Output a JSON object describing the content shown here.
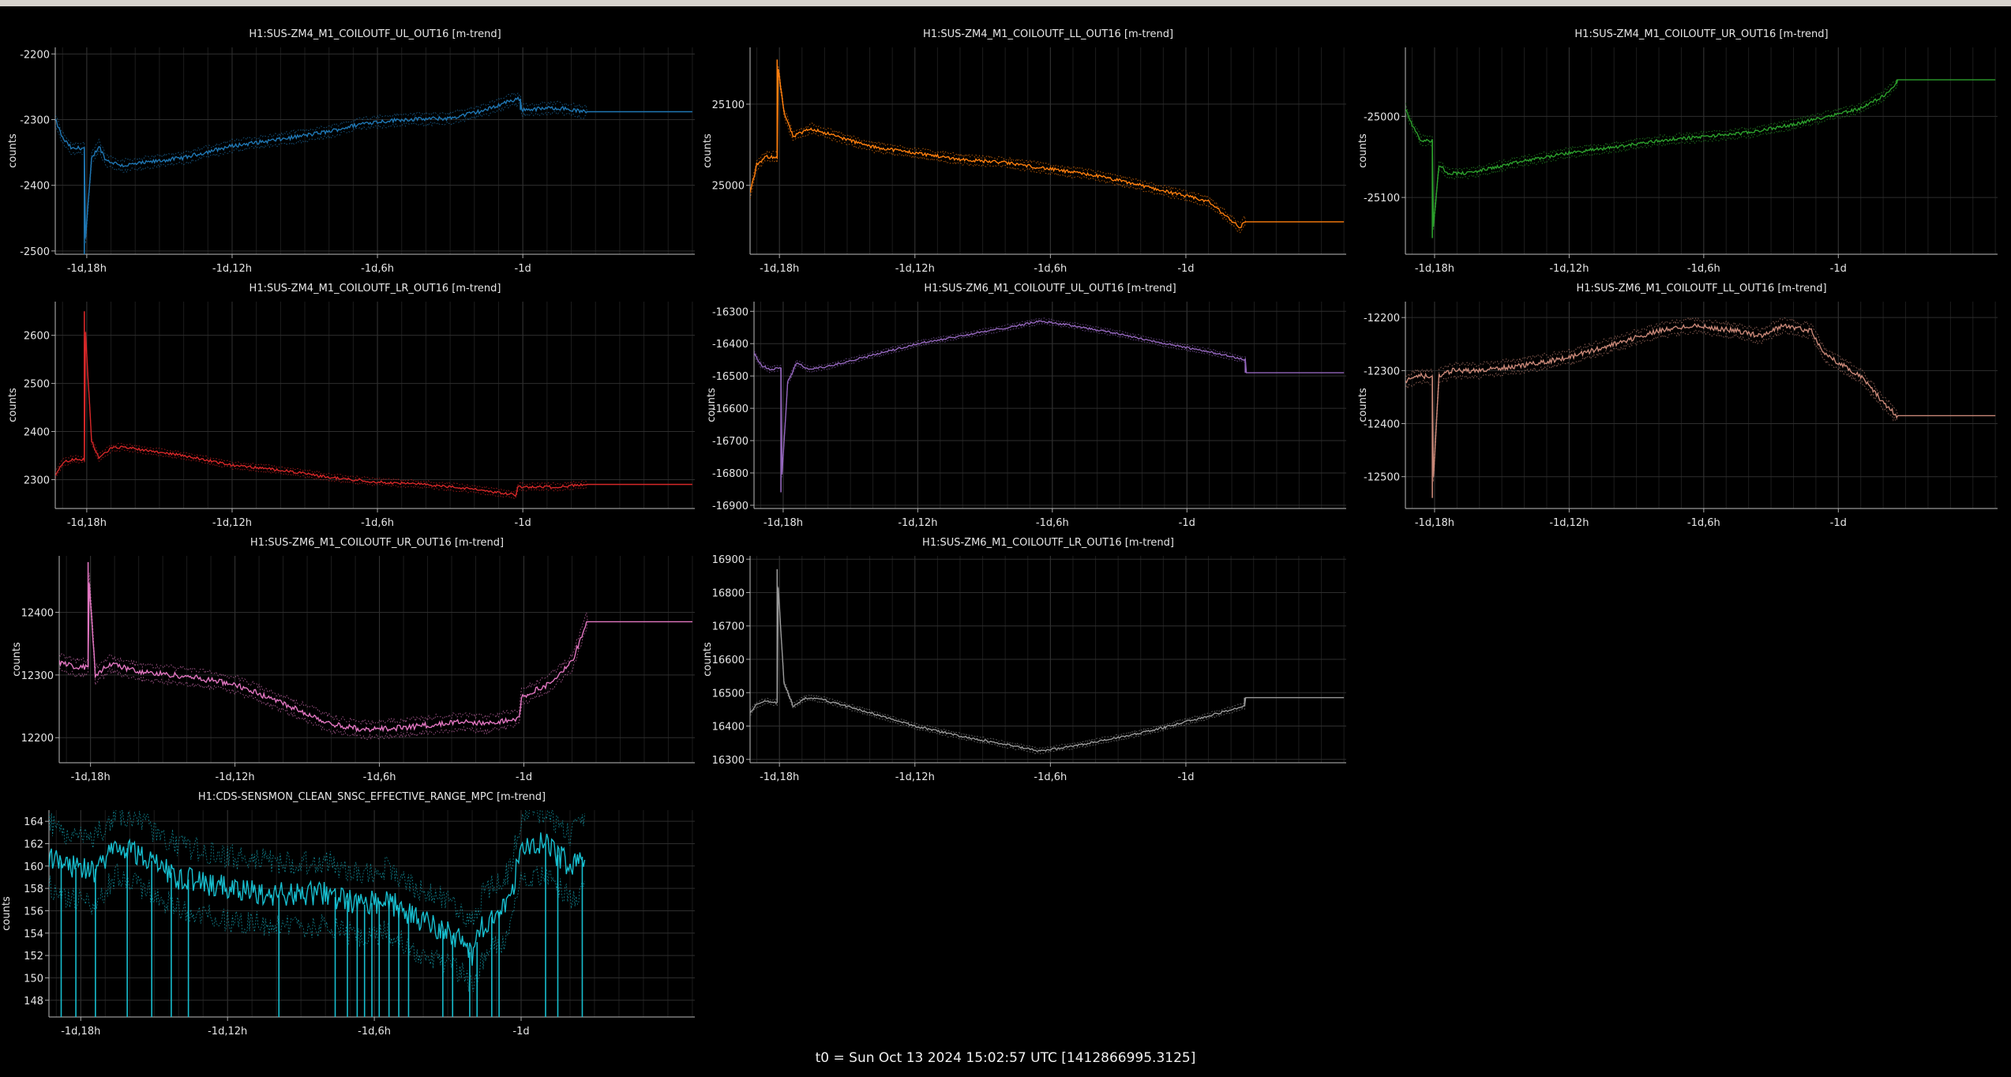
{
  "footer": "t0 = Sun Oct 13 2024 15:02:57 UTC [1412866995.3125]",
  "x_ticks": [
    "-1d,18h",
    "-1d,12h",
    "-1d,6h",
    "-1d"
  ],
  "x_tick_hours": [
    -42,
    -36,
    -30,
    -24
  ],
  "x_range_hours": [
    -43.3,
    -16.9
  ],
  "chart_data": [
    {
      "type": "line",
      "title": "H1:SUS-ZM4_M1_COILOUTF_UL_OUT16 [m-trend]",
      "ylabel": "counts",
      "color": "#1f77b4",
      "ylim": [
        -2505,
        -2190
      ],
      "yticks": [
        -2200,
        -2300,
        -2400,
        -2500
      ],
      "points": [
        [
          -43.3,
          -2300
        ],
        [
          -43.0,
          -2328
        ],
        [
          -42.6,
          -2345
        ],
        [
          -42.3,
          -2343
        ],
        [
          -42.1,
          -2343
        ],
        [
          -42.1,
          -2505
        ],
        [
          -41.8,
          -2360
        ],
        [
          -41.5,
          -2340
        ],
        [
          -41.2,
          -2362
        ],
        [
          -40.5,
          -2370
        ],
        [
          -38,
          -2358
        ],
        [
          -36,
          -2340
        ],
        [
          -34,
          -2330
        ],
        [
          -32,
          -2318
        ],
        [
          -30.5,
          -2305
        ],
        [
          -29,
          -2300
        ],
        [
          -27,
          -2298
        ],
        [
          -25.5,
          -2285
        ],
        [
          -24.6,
          -2272
        ],
        [
          -24.1,
          -2268
        ],
        [
          -24.1,
          -2285
        ],
        [
          -22.5,
          -2282
        ],
        [
          -21.5,
          -2288
        ],
        [
          -21.4,
          -2288
        ],
        [
          -17,
          -2288
        ]
      ],
      "noise": 6
    },
    {
      "type": "line",
      "title": "H1:SUS-ZM4_M1_COILOUTF_LL_OUT16 [m-trend]",
      "ylabel": "counts",
      "color": "#ff7f0e",
      "ylim": [
        24915,
        25170
      ],
      "yticks": [
        25100,
        25000
      ],
      "points": [
        [
          -43.3,
          24990
        ],
        [
          -43.0,
          25025
        ],
        [
          -42.6,
          25035
        ],
        [
          -42.1,
          25035
        ],
        [
          -42.1,
          25155
        ],
        [
          -41.8,
          25090
        ],
        [
          -41.4,
          25060
        ],
        [
          -40.6,
          25070
        ],
        [
          -38,
          25048
        ],
        [
          -36,
          25040
        ],
        [
          -34,
          25032
        ],
        [
          -32,
          25028
        ],
        [
          -30,
          25020
        ],
        [
          -28,
          25012
        ],
        [
          -26,
          25000
        ],
        [
          -24.5,
          24990
        ],
        [
          -23,
          24980
        ],
        [
          -21.6,
          24948
        ],
        [
          -21.4,
          24955
        ],
        [
          -17,
          24955
        ]
      ],
      "noise": 4
    },
    {
      "type": "line",
      "title": "H1:SUS-ZM4_M1_COILOUTF_UR_OUT16 [m-trend]",
      "ylabel": "counts",
      "color": "#2ca02c",
      "ylim": [
        -25170,
        -24915
      ],
      "yticks": [
        -25000,
        -25100
      ],
      "points": [
        [
          -43.3,
          -24990
        ],
        [
          -43.0,
          -25010
        ],
        [
          -42.6,
          -25030
        ],
        [
          -42.1,
          -25030
        ],
        [
          -42.1,
          -25150
        ],
        [
          -41.8,
          -25060
        ],
        [
          -41.4,
          -25070
        ],
        [
          -40.5,
          -25070
        ],
        [
          -38,
          -25055
        ],
        [
          -36,
          -25045
        ],
        [
          -34,
          -25038
        ],
        [
          -32,
          -25030
        ],
        [
          -30,
          -25025
        ],
        [
          -28,
          -25020
        ],
        [
          -26,
          -25010
        ],
        [
          -24.5,
          -25000
        ],
        [
          -23,
          -24990
        ],
        [
          -22,
          -24975
        ],
        [
          -21.4,
          -24960
        ],
        [
          -21.4,
          -24955
        ],
        [
          -17,
          -24955
        ]
      ],
      "noise": 4
    },
    {
      "type": "line",
      "title": "H1:SUS-ZM4_M1_COILOUTF_LR_OUT16 [m-trend]",
      "ylabel": "counts",
      "color": "#d62728",
      "ylim": [
        2240,
        2670
      ],
      "yticks": [
        2600,
        2500,
        2400,
        2300
      ],
      "points": [
        [
          -43.3,
          2310
        ],
        [
          -43.0,
          2335
        ],
        [
          -42.6,
          2342
        ],
        [
          -42.1,
          2342
        ],
        [
          -42.1,
          2650
        ],
        [
          -41.8,
          2380
        ],
        [
          -41.5,
          2345
        ],
        [
          -41.0,
          2365
        ],
        [
          -40.5,
          2368
        ],
        [
          -38,
          2350
        ],
        [
          -36,
          2330
        ],
        [
          -34,
          2320
        ],
        [
          -32,
          2305
        ],
        [
          -30,
          2295
        ],
        [
          -28,
          2290
        ],
        [
          -26,
          2280
        ],
        [
          -24.3,
          2268
        ],
        [
          -24.2,
          2285
        ],
        [
          -22.5,
          2285
        ],
        [
          -21.4,
          2290
        ],
        [
          -17,
          2290
        ]
      ],
      "noise": 5
    },
    {
      "type": "line",
      "title": "H1:SUS-ZM6_M1_COILOUTF_UL_OUT16 [m-trend]",
      "ylabel": "counts",
      "color": "#9467bd",
      "ylim": [
        -16910,
        -16270
      ],
      "yticks": [
        -16300,
        -16400,
        -16500,
        -16600,
        -16700,
        -16800,
        -16900
      ],
      "points": [
        [
          -43.3,
          -16430
        ],
        [
          -43.0,
          -16465
        ],
        [
          -42.6,
          -16480
        ],
        [
          -42.1,
          -16475
        ],
        [
          -42.1,
          -16860
        ],
        [
          -41.8,
          -16520
        ],
        [
          -41.4,
          -16460
        ],
        [
          -40.8,
          -16480
        ],
        [
          -40,
          -16470
        ],
        [
          -38,
          -16435
        ],
        [
          -36,
          -16400
        ],
        [
          -34,
          -16375
        ],
        [
          -32,
          -16350
        ],
        [
          -30.5,
          -16330
        ],
        [
          -29,
          -16345
        ],
        [
          -27,
          -16370
        ],
        [
          -25,
          -16400
        ],
        [
          -23,
          -16425
        ],
        [
          -21.4,
          -16450
        ],
        [
          -21.4,
          -16490
        ],
        [
          -17,
          -16490
        ]
      ],
      "noise": 6
    },
    {
      "type": "line",
      "title": "H1:SUS-ZM6_M1_COILOUTF_LL_OUT16 [m-trend]",
      "ylabel": "counts",
      "color": "#c98878",
      "ylim": [
        -12560,
        -12170
      ],
      "yticks": [
        -12200,
        -12300,
        -12400,
        -12500
      ],
      "points": [
        [
          -43.3,
          -12320
        ],
        [
          -42.6,
          -12310
        ],
        [
          -42.1,
          -12312
        ],
        [
          -42.1,
          -12540
        ],
        [
          -41.8,
          -12310
        ],
        [
          -41.2,
          -12300
        ],
        [
          -40,
          -12300
        ],
        [
          -38,
          -12290
        ],
        [
          -36,
          -12275
        ],
        [
          -34,
          -12250
        ],
        [
          -32,
          -12225
        ],
        [
          -30.5,
          -12215
        ],
        [
          -28.5,
          -12225
        ],
        [
          -27.5,
          -12235
        ],
        [
          -26.5,
          -12215
        ],
        [
          -25.2,
          -12225
        ],
        [
          -24.6,
          -12270
        ],
        [
          -23,
          -12310
        ],
        [
          -22,
          -12360
        ],
        [
          -21.4,
          -12385
        ],
        [
          -21.4,
          -12385
        ],
        [
          -17,
          -12385
        ]
      ],
      "noise": 9
    },
    {
      "type": "line",
      "title": "H1:SUS-ZM6_M1_COILOUTF_UR_OUT16 [m-trend]",
      "ylabel": "counts",
      "color": "#e377c2",
      "ylim": [
        12160,
        12490
      ],
      "yticks": [
        12400,
        12300,
        12200
      ],
      "points": [
        [
          -43.3,
          12320
        ],
        [
          -42.6,
          12312
        ],
        [
          -42.1,
          12312
        ],
        [
          -42.1,
          12480
        ],
        [
          -41.8,
          12300
        ],
        [
          -41.2,
          12318
        ],
        [
          -40,
          12305
        ],
        [
          -38,
          12298
        ],
        [
          -36,
          12285
        ],
        [
          -34,
          12255
        ],
        [
          -32,
          12222
        ],
        [
          -30.5,
          12212
        ],
        [
          -28.5,
          12218
        ],
        [
          -27.5,
          12222
        ],
        [
          -26.5,
          12225
        ],
        [
          -25.5,
          12222
        ],
        [
          -24.2,
          12232
        ],
        [
          -24.1,
          12265
        ],
        [
          -23,
          12285
        ],
        [
          -22,
          12320
        ],
        [
          -21.4,
          12385
        ],
        [
          -17,
          12385
        ]
      ],
      "noise": 9
    },
    {
      "type": "line",
      "title": "H1:SUS-ZM6_M1_COILOUTF_LR_OUT16 [m-trend]",
      "ylabel": "counts",
      "color": "#9a9a9a",
      "ylim": [
        16290,
        16910
      ],
      "yticks": [
        16900,
        16800,
        16700,
        16600,
        16500,
        16400,
        16300
      ],
      "points": [
        [
          -43.3,
          16440
        ],
        [
          -43.0,
          16465
        ],
        [
          -42.6,
          16475
        ],
        [
          -42.1,
          16470
        ],
        [
          -42.1,
          16870
        ],
        [
          -41.8,
          16530
        ],
        [
          -41.4,
          16460
        ],
        [
          -40.8,
          16485
        ],
        [
          -40,
          16478
        ],
        [
          -38,
          16440
        ],
        [
          -36,
          16400
        ],
        [
          -34,
          16370
        ],
        [
          -32,
          16345
        ],
        [
          -30.5,
          16325
        ],
        [
          -29,
          16340
        ],
        [
          -27,
          16365
        ],
        [
          -25,
          16395
        ],
        [
          -23,
          16430
        ],
        [
          -21.4,
          16460
        ],
        [
          -21.4,
          16485
        ],
        [
          -17,
          16485
        ]
      ],
      "noise": 6
    },
    {
      "type": "line",
      "title": "H1:CDS-SENSMON_CLEAN_SNSC_EFFECTIVE_RANGE_MPC [m-trend]",
      "ylabel": "counts",
      "color": "#17becf",
      "ylim": [
        146.5,
        165
      ],
      "yticks": [
        164,
        162,
        160,
        158,
        156,
        154,
        152,
        150,
        148
      ],
      "points": [
        [
          -43.3,
          161
        ],
        [
          -42.5,
          160
        ],
        [
          -41.5,
          159.5
        ],
        [
          -40.5,
          162
        ],
        [
          -39.5,
          161
        ],
        [
          -38,
          159
        ],
        [
          -36,
          158
        ],
        [
          -34,
          157.5
        ],
        [
          -32,
          157.5
        ],
        [
          -30.5,
          156.5
        ],
        [
          -29.5,
          157
        ],
        [
          -28.5,
          155.5
        ],
        [
          -27.5,
          154.5
        ],
        [
          -26.5,
          153.5
        ],
        [
          -26,
          152
        ],
        [
          -25.5,
          155
        ],
        [
          -24.5,
          156.5
        ],
        [
          -24.0,
          161.5
        ],
        [
          -23,
          162
        ],
        [
          -22,
          160
        ],
        [
          -21.4,
          161
        ]
      ],
      "dropouts": [
        -42.8,
        -42.2,
        -41.4,
        -40.1,
        -39.1,
        -38.3,
        -37.6,
        -33.9,
        -31.6,
        -31.1,
        -30.7,
        -30.4,
        -30.1,
        -29.8,
        -29.4,
        -29.0,
        -28.6,
        -27.2,
        -26.8,
        -26.1,
        -25.8,
        -25.2,
        -24.9,
        -23.0,
        -22.5,
        -21.5
      ],
      "noise": 2.2
    }
  ]
}
